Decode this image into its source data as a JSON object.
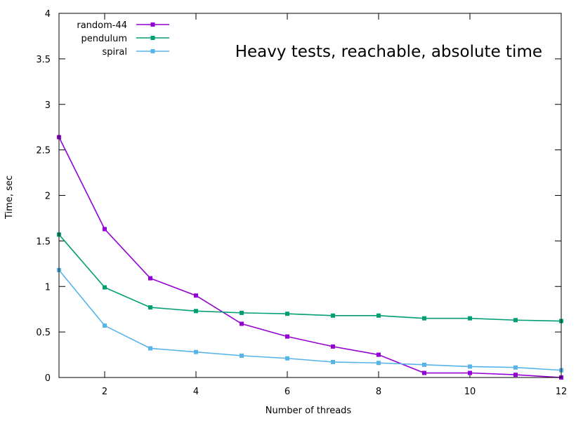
{
  "chart_data": {
    "type": "line",
    "title": "Heavy tests, reachable, absolute time",
    "xlabel": "Number of threads",
    "ylabel": "Time, sec",
    "xlim": [
      1,
      12
    ],
    "ylim": [
      0,
      4
    ],
    "xticks": [
      2,
      4,
      6,
      8,
      10,
      12
    ],
    "xtick_labels": [
      "2",
      "4",
      "6",
      "8",
      "10",
      "12"
    ],
    "yticks": [
      0,
      0.5,
      1,
      1.5,
      2,
      2.5,
      3,
      3.5,
      4
    ],
    "ytick_labels": [
      "0",
      "0.5",
      "1",
      "1.5",
      "2",
      "2.5",
      "3",
      "3.5",
      "4"
    ],
    "grid": false,
    "legend_position": "top-left",
    "x": [
      1,
      2,
      3,
      4,
      5,
      6,
      7,
      8,
      9,
      10,
      11,
      12
    ],
    "series": [
      {
        "name": "random-44",
        "color": "#9400d3",
        "values": [
          2.64,
          1.63,
          1.09,
          0.9,
          0.59,
          0.45,
          0.34,
          0.25,
          0.05,
          0.05,
          0.03,
          0.0
        ]
      },
      {
        "name": "pendulum",
        "color": "#009e73",
        "values": [
          1.57,
          0.99,
          0.77,
          0.73,
          0.71,
          0.7,
          0.68,
          0.68,
          0.65,
          0.65,
          0.63,
          0.62
        ]
      },
      {
        "name": "spiral",
        "color": "#56b4e9",
        "values": [
          1.18,
          0.57,
          0.32,
          0.28,
          0.24,
          0.21,
          0.17,
          0.16,
          0.14,
          0.12,
          0.11,
          0.08
        ]
      }
    ]
  }
}
